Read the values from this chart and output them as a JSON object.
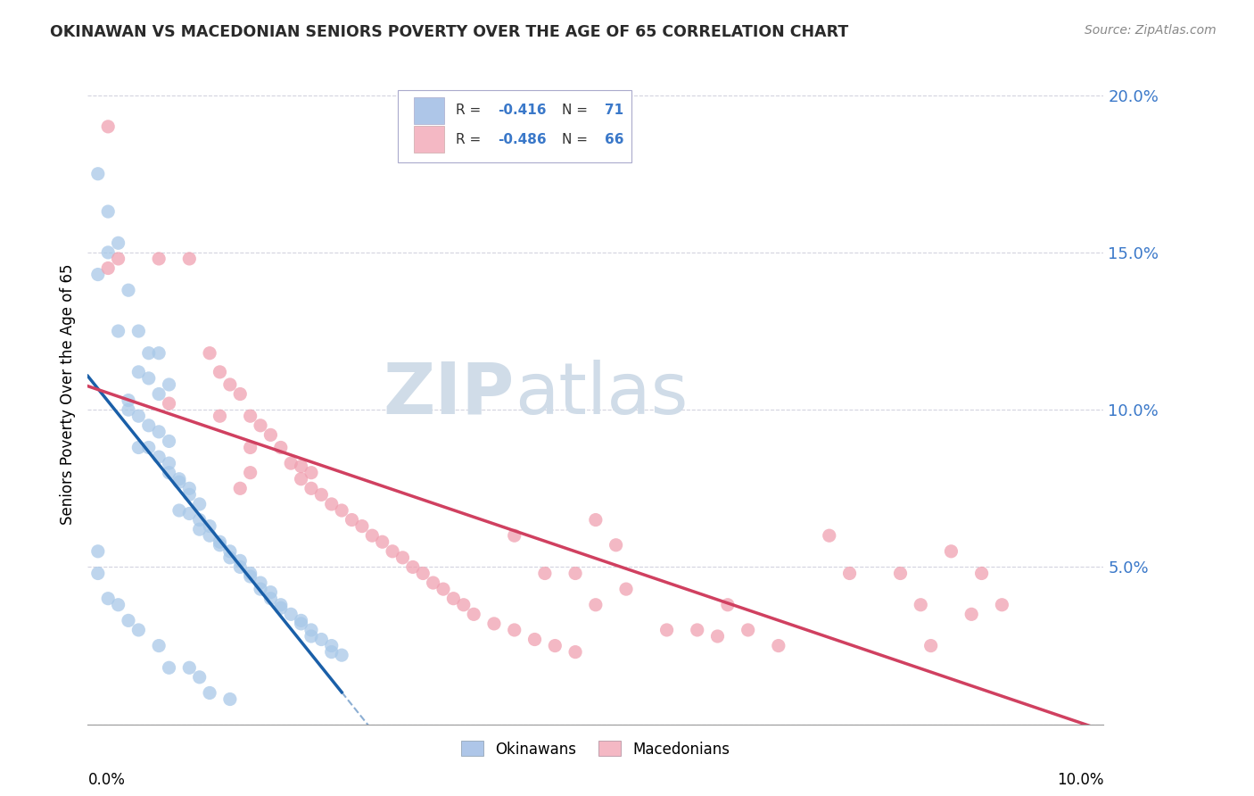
{
  "title": "OKINAWAN VS MACEDONIAN SENIORS POVERTY OVER THE AGE OF 65 CORRELATION CHART",
  "source": "Source: ZipAtlas.com",
  "ylabel": "Seniors Poverty Over the Age of 65",
  "xlim": [
    0.0,
    0.1
  ],
  "ylim": [
    0.0,
    0.21
  ],
  "okinawan_color": "#a8c8e8",
  "macedonian_color": "#f0a0b0",
  "okinawan_line_color": "#1a5fa8",
  "macedonian_line_color": "#d04060",
  "watermark_color": "#d0dce8",
  "grid_color": "#c8c8d8",
  "background_color": "#ffffff",
  "legend_box_color": "#ddddee",
  "okinawan_points": [
    [
      0.001,
      0.175
    ],
    [
      0.002,
      0.163
    ],
    [
      0.002,
      0.15
    ],
    [
      0.001,
      0.143
    ],
    [
      0.003,
      0.153
    ],
    [
      0.004,
      0.138
    ],
    [
      0.003,
      0.125
    ],
    [
      0.005,
      0.125
    ],
    [
      0.006,
      0.118
    ],
    [
      0.007,
      0.118
    ],
    [
      0.005,
      0.112
    ],
    [
      0.006,
      0.11
    ],
    [
      0.008,
      0.108
    ],
    [
      0.007,
      0.105
    ],
    [
      0.004,
      0.103
    ],
    [
      0.004,
      0.1
    ],
    [
      0.005,
      0.098
    ],
    [
      0.006,
      0.095
    ],
    [
      0.007,
      0.093
    ],
    [
      0.008,
      0.09
    ],
    [
      0.005,
      0.088
    ],
    [
      0.006,
      0.088
    ],
    [
      0.007,
      0.085
    ],
    [
      0.008,
      0.083
    ],
    [
      0.008,
      0.08
    ],
    [
      0.009,
      0.078
    ],
    [
      0.009,
      0.077
    ],
    [
      0.01,
      0.075
    ],
    [
      0.01,
      0.073
    ],
    [
      0.011,
      0.07
    ],
    [
      0.009,
      0.068
    ],
    [
      0.01,
      0.067
    ],
    [
      0.011,
      0.065
    ],
    [
      0.012,
      0.063
    ],
    [
      0.011,
      0.062
    ],
    [
      0.012,
      0.06
    ],
    [
      0.013,
      0.058
    ],
    [
      0.013,
      0.057
    ],
    [
      0.014,
      0.055
    ],
    [
      0.014,
      0.053
    ],
    [
      0.015,
      0.052
    ],
    [
      0.015,
      0.05
    ],
    [
      0.016,
      0.048
    ],
    [
      0.016,
      0.047
    ],
    [
      0.017,
      0.045
    ],
    [
      0.017,
      0.043
    ],
    [
      0.018,
      0.042
    ],
    [
      0.018,
      0.04
    ],
    [
      0.019,
      0.038
    ],
    [
      0.019,
      0.037
    ],
    [
      0.02,
      0.035
    ],
    [
      0.021,
      0.033
    ],
    [
      0.021,
      0.032
    ],
    [
      0.022,
      0.03
    ],
    [
      0.022,
      0.028
    ],
    [
      0.023,
      0.027
    ],
    [
      0.024,
      0.025
    ],
    [
      0.024,
      0.023
    ],
    [
      0.025,
      0.022
    ],
    [
      0.002,
      0.04
    ],
    [
      0.003,
      0.038
    ],
    [
      0.004,
      0.033
    ],
    [
      0.005,
      0.03
    ],
    [
      0.008,
      0.018
    ],
    [
      0.01,
      0.018
    ],
    [
      0.011,
      0.015
    ],
    [
      0.012,
      0.01
    ],
    [
      0.014,
      0.008
    ],
    [
      0.007,
      0.025
    ],
    [
      0.001,
      0.055
    ],
    [
      0.001,
      0.048
    ]
  ],
  "macedonian_points": [
    [
      0.002,
      0.19
    ],
    [
      0.002,
      0.145
    ],
    [
      0.003,
      0.148
    ],
    [
      0.01,
      0.148
    ],
    [
      0.012,
      0.118
    ],
    [
      0.013,
      0.112
    ],
    [
      0.013,
      0.098
    ],
    [
      0.014,
      0.108
    ],
    [
      0.015,
      0.105
    ],
    [
      0.016,
      0.098
    ],
    [
      0.016,
      0.088
    ],
    [
      0.017,
      0.095
    ],
    [
      0.018,
      0.092
    ],
    [
      0.019,
      0.088
    ],
    [
      0.02,
      0.083
    ],
    [
      0.021,
      0.082
    ],
    [
      0.021,
      0.078
    ],
    [
      0.022,
      0.08
    ],
    [
      0.022,
      0.075
    ],
    [
      0.023,
      0.073
    ],
    [
      0.024,
      0.07
    ],
    [
      0.025,
      0.068
    ],
    [
      0.026,
      0.065
    ],
    [
      0.027,
      0.063
    ],
    [
      0.028,
      0.06
    ],
    [
      0.029,
      0.058
    ],
    [
      0.03,
      0.055
    ],
    [
      0.031,
      0.053
    ],
    [
      0.032,
      0.05
    ],
    [
      0.033,
      0.048
    ],
    [
      0.034,
      0.045
    ],
    [
      0.035,
      0.043
    ],
    [
      0.036,
      0.04
    ],
    [
      0.037,
      0.038
    ],
    [
      0.038,
      0.035
    ],
    [
      0.04,
      0.032
    ],
    [
      0.042,
      0.03
    ],
    [
      0.044,
      0.027
    ],
    [
      0.046,
      0.025
    ],
    [
      0.048,
      0.023
    ],
    [
      0.05,
      0.065
    ],
    [
      0.052,
      0.057
    ],
    [
      0.053,
      0.043
    ],
    [
      0.057,
      0.03
    ],
    [
      0.06,
      0.03
    ],
    [
      0.062,
      0.028
    ],
    [
      0.063,
      0.038
    ],
    [
      0.065,
      0.03
    ],
    [
      0.068,
      0.025
    ],
    [
      0.073,
      0.06
    ],
    [
      0.075,
      0.048
    ],
    [
      0.08,
      0.048
    ],
    [
      0.082,
      0.038
    ],
    [
      0.083,
      0.025
    ],
    [
      0.085,
      0.055
    ],
    [
      0.087,
      0.035
    ],
    [
      0.088,
      0.048
    ],
    [
      0.09,
      0.038
    ],
    [
      0.042,
      0.06
    ],
    [
      0.045,
      0.048
    ],
    [
      0.048,
      0.048
    ],
    [
      0.05,
      0.038
    ],
    [
      0.015,
      0.075
    ],
    [
      0.016,
      0.08
    ],
    [
      0.007,
      0.148
    ],
    [
      0.008,
      0.102
    ]
  ]
}
